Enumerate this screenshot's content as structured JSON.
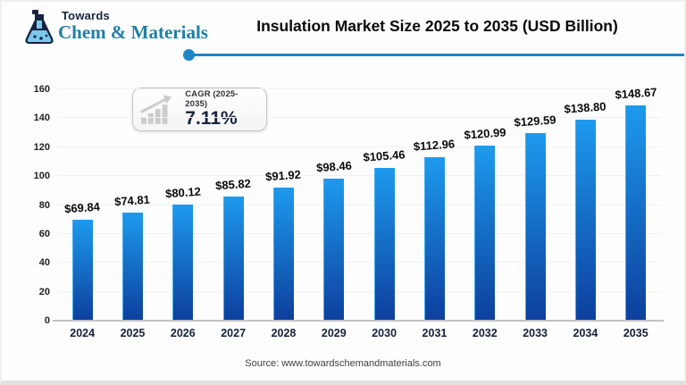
{
  "header": {
    "brand": {
      "top": "Towards",
      "bottom": "Chem & Materials"
    },
    "title": "Insulation Market Size 2025 to 2035 (USD Billion)"
  },
  "badge": {
    "label": "CAGR (2025-2035)",
    "value": "7.11%"
  },
  "source": "Source: www.towardschemandmaterials.com",
  "colors": {
    "bar_top": "#1d9aee",
    "bar_bottom": "#0d3f9e",
    "accent_line": "#1c86c8",
    "brand_teal": "#1f7fa4",
    "brand_navy": "#16243f",
    "badge_icon_gray": "#cccccc"
  },
  "chart_data": {
    "type": "bar",
    "title": "Insulation Market Size 2025 to 2035 (USD Billion)",
    "categories": [
      "2024",
      "2025",
      "2026",
      "2027",
      "2028",
      "2029",
      "2030",
      "2031",
      "2032",
      "2033",
      "2034",
      "2035"
    ],
    "values": [
      69.84,
      74.81,
      80.12,
      85.82,
      91.92,
      98.46,
      105.46,
      112.96,
      120.99,
      129.59,
      138.8,
      148.67
    ],
    "value_labels": [
      "$69.84",
      "$74.81",
      "$80.12",
      "$85.82",
      "$91.92",
      "$98.46",
      "$105.46",
      "$112.96",
      "$120.99",
      "$129.59",
      "$138.80",
      "$148.67"
    ],
    "xlabel": "",
    "ylabel": "",
    "ylim": [
      0,
      160
    ],
    "yticks": [
      0,
      20,
      40,
      60,
      80,
      100,
      120,
      140,
      160
    ],
    "grid": "faint-horizontal",
    "legend": "none",
    "unit": "USD Billion"
  }
}
